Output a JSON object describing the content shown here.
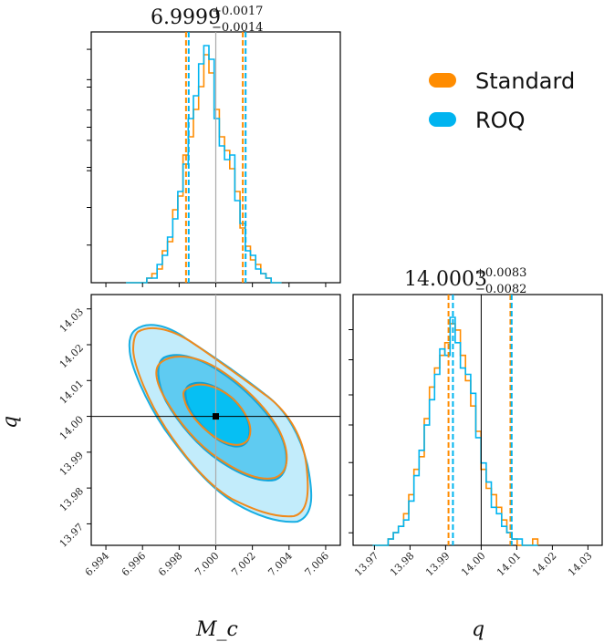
{
  "chart_data": {
    "type": "corner",
    "colors": {
      "standard": "#ff8c00",
      "roq": "#00b4f0",
      "truth": "#999999",
      "frame": "#000000"
    },
    "legend": [
      {
        "name": "Standard",
        "color": "#ff8c00"
      },
      {
        "name": "ROQ",
        "color": "#00b4f0"
      }
    ],
    "parameters": [
      {
        "key": "mc",
        "label": "M_c",
        "truth": 7.0,
        "range": [
          6.9932,
          7.0068
        ],
        "ticks": [
          "6.994",
          "6.996",
          "6.998",
          "7.000",
          "7.002",
          "7.004",
          "7.006"
        ],
        "title": {
          "median": "6.9999",
          "plus": "+0.0017",
          "minus": "−0.0014"
        }
      },
      {
        "key": "q",
        "label": "q",
        "truth": 14.0,
        "range": [
          13.964,
          14.034
        ],
        "ticks": [
          "13.97",
          "13.98",
          "13.99",
          "14.00",
          "14.01",
          "14.02",
          "14.03"
        ],
        "title": {
          "median": "14.0003",
          "plus": "+0.0083",
          "minus": "−0.0082"
        }
      }
    ],
    "hist_mc": {
      "edges_start": 6.9951,
      "bin_width": 0.000283,
      "standard": [
        0,
        0,
        0,
        0,
        1,
        2,
        3,
        7,
        9,
        16,
        19,
        28,
        32,
        38,
        43,
        50,
        46,
        38,
        32,
        29,
        25,
        20,
        12,
        8,
        5,
        4,
        2,
        1,
        0,
        0
      ],
      "roq": [
        0,
        0,
        0,
        0,
        1,
        1,
        4,
        6,
        10,
        14,
        20,
        26,
        36,
        41,
        48,
        52,
        49,
        36,
        30,
        27,
        28,
        18,
        13,
        7,
        6,
        3,
        2,
        1,
        0,
        0
      ],
      "quantiles_standard": [
        6.99845,
        7.00155
      ],
      "quantiles_roq": [
        6.99847,
        7.00158
      ]
    },
    "hist_q": {
      "edges_start": 13.9695,
      "bin_width": 0.00145,
      "standard": [
        0,
        0,
        0,
        1,
        2,
        3,
        5,
        8,
        12,
        14,
        20,
        25,
        28,
        30,
        32,
        35,
        34,
        30,
        26,
        22,
        18,
        12,
        9,
        8,
        6,
        4,
        2,
        1,
        0,
        0,
        0,
        1
      ],
      "roq": [
        0,
        0,
        0,
        1,
        2,
        3,
        4,
        7,
        11,
        15,
        19,
        23,
        27,
        31,
        30,
        36,
        32,
        28,
        27,
        24,
        17,
        13,
        10,
        6,
        5,
        3,
        2,
        1,
        1,
        0,
        0,
        0
      ],
      "quantiles_standard": [
        13.9912,
        14.0086
      ],
      "quantiles_roq": [
        13.9918,
        14.0083
      ]
    },
    "contours_2d": {
      "center": [
        7.0,
        14.0
      ],
      "levels": [
        "1-sigma",
        "2-sigma",
        "3-sigma"
      ]
    }
  }
}
